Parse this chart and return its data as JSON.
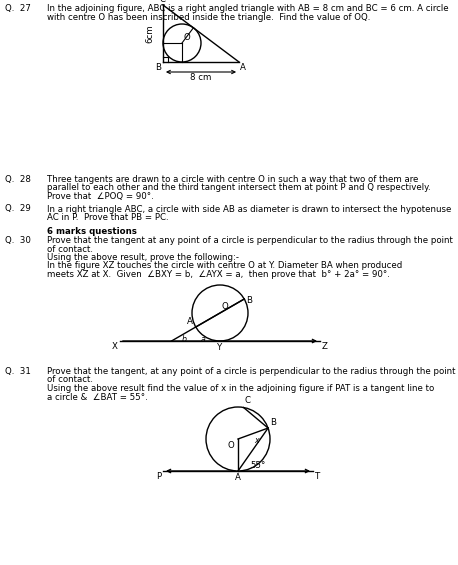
{
  "bg_color": "#ffffff",
  "text_color": "#000000",
  "fs": 6.2,
  "fs_bold": 6.2,
  "fig_w": 4.58,
  "fig_h": 5.65,
  "dpi": 100,
  "q27_num": "Q.  27",
  "q27_line1": "In the adjoining figure, ABC is a right angled triangle with AB = 8 cm and BC = 6 cm. A circle",
  "q27_line2": "with centre O has been inscribed inside the triangle.  Find the value of OQ.",
  "q28_num": "Q.  28",
  "q28_line1": "Three tangents are drawn to a circle with centre O in such a way that two of them are",
  "q28_line2": "parallel to each other and the third tangent intersect them at point P and Q respectively.",
  "q28_line3": "Prove that  ∠POQ = 90°.",
  "q29_num": "Q.  29",
  "q29_line1": "In a right triangle ABC, a circle with side AB as diameter is drawn to intersect the hypotenuse",
  "q29_line2": "AC in P.  Prove that PB = PC.",
  "header6": "6 marks questions",
  "q30_num": "Q.  30",
  "q30_line1": "Prove that the tangent at any point of a circle is perpendicular to the radius through the point",
  "q30_line2": "of contact.",
  "q30_line3": "Using the above result, prove the following:-",
  "q30_line4": "In the figure XZ touches the circle with centre O at Y. Diameter BA when produced",
  "q30_line5": "meets XZ at X.  Given  ∠BXY = b,  ∠AYX = a,  then prove that  b° + 2a° = 90°.",
  "q31_num": "Q.  31",
  "q31_line1": "Prove that the tangent, at any point of a circle is perpendicular to the radius through the point",
  "q31_line2": "of contact.",
  "q31_line3": "Using the above result find the value of x in the adjoining figure if PAT is a tangent line to",
  "q31_line4": "a circle &  ∠BAT = 55°."
}
